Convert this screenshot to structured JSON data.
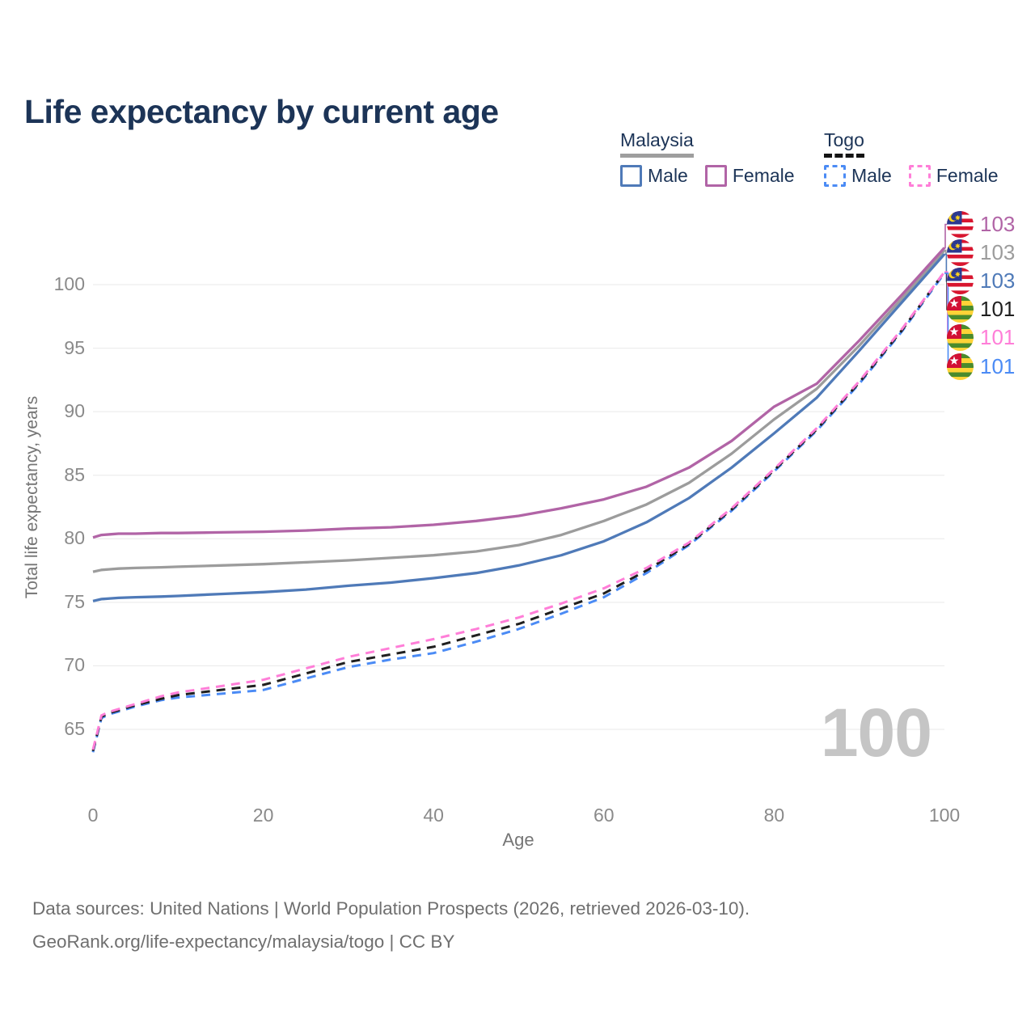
{
  "header": {
    "title": "Life expectancy by current age"
  },
  "legend": {
    "groups": [
      {
        "label": "Malaysia",
        "style": "solid",
        "underline_color": "#9e9e9e",
        "items": [
          {
            "label": "Male",
            "color": "#4f7ab8"
          },
          {
            "label": "Female",
            "color": "#b164a6"
          }
        ]
      },
      {
        "label": "Togo",
        "style": "dashed",
        "underline_color": "#141414",
        "items": [
          {
            "label": "Male",
            "color": "#4b8bf5"
          },
          {
            "label": "Female",
            "color": "#ff7ed8"
          }
        ]
      }
    ]
  },
  "watermark": "100",
  "footer": {
    "line1": "Data sources: United Nations | World Population Prospects (2026, retrieved 2026-03-10).",
    "line2": "GeoRank.org/life-expectancy/malaysia/togo | CC BY"
  },
  "colors": {
    "title": "#1c3457",
    "axis_text": "#8a8a8a",
    "axis_title": "#757575",
    "gridline": "#e9e9e9",
    "watermark": "#c5c5c5"
  },
  "chart_data": {
    "type": "line",
    "title": "Life expectancy by current age",
    "xlabel": "Age",
    "ylabel": "Total life expectancy, years",
    "xlim": [
      0,
      100
    ],
    "ylim": [
      62.5,
      104
    ],
    "xticks": [
      0,
      20,
      40,
      60,
      80,
      100
    ],
    "yticks": [
      65,
      70,
      75,
      80,
      85,
      90,
      95,
      100
    ],
    "grid": "horizontal",
    "legend_position": "top-right",
    "x": [
      0,
      1,
      2,
      3,
      5,
      8,
      10,
      15,
      20,
      25,
      30,
      35,
      40,
      45,
      50,
      55,
      60,
      65,
      70,
      75,
      80,
      85,
      90,
      95,
      100
    ],
    "series": [
      {
        "name": "Malaysia Female",
        "country": "Malaysia",
        "sex": "Female",
        "color": "#b164a6",
        "dash": false,
        "end_label": "103",
        "values": [
          80.1,
          80.3,
          80.35,
          80.4,
          80.4,
          80.45,
          80.45,
          80.5,
          80.55,
          80.65,
          80.8,
          80.9,
          81.1,
          81.4,
          81.8,
          82.4,
          83.1,
          84.1,
          85.6,
          87.7,
          90.4,
          92.2,
          95.6,
          99.2,
          102.9
        ]
      },
      {
        "name": "Malaysia Both sexes",
        "country": "Malaysia",
        "sex": "Both",
        "color": "#9c9c9c",
        "dash": false,
        "end_label": "103",
        "values": [
          77.4,
          77.55,
          77.6,
          77.65,
          77.7,
          77.75,
          77.8,
          77.9,
          78.0,
          78.15,
          78.3,
          78.5,
          78.7,
          79.0,
          79.5,
          80.3,
          81.4,
          82.7,
          84.4,
          86.7,
          89.4,
          91.8,
          95.2,
          98.9,
          102.7
        ]
      },
      {
        "name": "Malaysia Male",
        "country": "Malaysia",
        "sex": "Male",
        "color": "#4f7ab8",
        "dash": false,
        "end_label": "103",
        "values": [
          75.1,
          75.25,
          75.3,
          75.35,
          75.4,
          75.45,
          75.5,
          75.65,
          75.8,
          76.0,
          76.3,
          76.55,
          76.9,
          77.3,
          77.9,
          78.7,
          79.8,
          81.3,
          83.2,
          85.6,
          88.3,
          91.1,
          94.8,
          98.6,
          102.4
        ]
      },
      {
        "name": "Togo Female",
        "country": "Togo",
        "sex": "Female",
        "color": "#ff7ed8",
        "dash": true,
        "end_label": "101",
        "values": [
          63.4,
          66.1,
          66.4,
          66.6,
          67.0,
          67.6,
          67.9,
          68.4,
          68.9,
          69.8,
          70.7,
          71.4,
          72.1,
          72.9,
          73.8,
          74.9,
          76.1,
          77.7,
          79.7,
          82.4,
          85.5,
          88.7,
          92.4,
          96.5,
          101.0
        ]
      },
      {
        "name": "Togo Both sexes",
        "country": "Togo",
        "sex": "Both",
        "color": "#1f1f1f",
        "dash": true,
        "end_label": "101",
        "values": [
          63.3,
          66.0,
          66.3,
          66.5,
          66.9,
          67.4,
          67.7,
          68.1,
          68.5,
          69.4,
          70.3,
          70.9,
          71.5,
          72.4,
          73.3,
          74.5,
          75.7,
          77.5,
          79.6,
          82.3,
          85.4,
          88.6,
          92.3,
          96.4,
          101.0
        ]
      },
      {
        "name": "Togo Male",
        "country": "Togo",
        "sex": "Male",
        "color": "#4b8bf5",
        "dash": true,
        "end_label": "101",
        "values": [
          63.2,
          65.9,
          66.2,
          66.4,
          66.8,
          67.3,
          67.5,
          67.8,
          68.1,
          69.0,
          69.9,
          70.5,
          71.0,
          71.9,
          72.9,
          74.1,
          75.4,
          77.3,
          79.5,
          82.2,
          85.3,
          88.5,
          92.2,
          96.3,
          100.9
        ]
      }
    ],
    "end_labels": [
      {
        "value": "103",
        "color": "#b164a6",
        "flag": "malaysia",
        "series_index": 0
      },
      {
        "value": "103",
        "color": "#9c9c9c",
        "flag": "malaysia",
        "series_index": 1
      },
      {
        "value": "103",
        "color": "#4f7ab8",
        "flag": "malaysia",
        "series_index": 2
      },
      {
        "value": "101",
        "color": "#1f1f1f",
        "flag": "togo",
        "series_index": 4
      },
      {
        "value": "101",
        "color": "#ff7ed8",
        "flag": "togo",
        "series_index": 3
      },
      {
        "value": "101",
        "color": "#4b8bf5",
        "flag": "togo",
        "series_index": 5
      }
    ]
  }
}
